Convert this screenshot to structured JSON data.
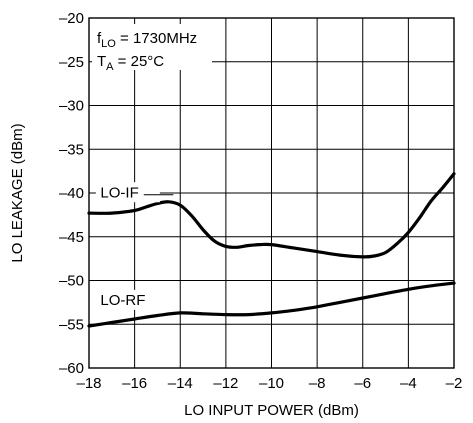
{
  "chart_data": {
    "type": "line",
    "xlabel": "LO INPUT POWER (dBm)",
    "ylabel": "LO LEAKAGE (dBm)",
    "xlim": [
      -18,
      -2
    ],
    "ylim": [
      -60,
      -20
    ],
    "xticks": [
      -18,
      -16,
      -14,
      -12,
      -10,
      -8,
      -6,
      -4,
      -2
    ],
    "yticks": [
      -20,
      -25,
      -30,
      -35,
      -40,
      -45,
      -50,
      -55,
      -60
    ],
    "x_tick_labels": [
      "–18",
      "–16",
      "–14",
      "–12",
      "–10",
      "–8",
      "–6",
      "–4",
      "–2"
    ],
    "y_tick_labels": [
      "–20",
      "–25",
      "–30",
      "–35",
      "–40",
      "–45",
      "–50",
      "–55",
      "–60"
    ],
    "grid": true,
    "conditions": {
      "flo_main": "f",
      "flo_sub": "LO",
      "flo_value": " = 1730MHz",
      "ta_main": "T",
      "ta_sub": "A",
      "ta_value": " = 25°C"
    },
    "series": [
      {
        "name": "LO-IF",
        "x": [
          -18,
          -17,
          -16,
          -15.5,
          -15,
          -14.5,
          -14,
          -13.5,
          -13,
          -12.5,
          -12,
          -11.5,
          -11,
          -10.5,
          -10,
          -9,
          -8,
          -7,
          -6,
          -5.5,
          -5,
          -4.5,
          -4,
          -3.5,
          -3,
          -2.5,
          -2
        ],
        "y": [
          -42.3,
          -42.3,
          -42.0,
          -41.6,
          -41.2,
          -41.0,
          -41.4,
          -42.6,
          -44.2,
          -45.5,
          -46.1,
          -46.2,
          -46.0,
          -45.9,
          -45.9,
          -46.3,
          -46.7,
          -47.1,
          -47.3,
          -47.2,
          -46.8,
          -45.8,
          -44.5,
          -42.8,
          -40.9,
          -39.4,
          -37.8
        ]
      },
      {
        "name": "LO-RF",
        "x": [
          -18,
          -17,
          -16,
          -15,
          -14,
          -13,
          -12,
          -11,
          -10,
          -9,
          -8,
          -7,
          -6,
          -5,
          -4,
          -3,
          -2
        ],
        "y": [
          -55.2,
          -54.8,
          -54.4,
          -54.0,
          -53.7,
          -53.8,
          -53.9,
          -53.9,
          -53.7,
          -53.4,
          -53.0,
          -52.5,
          -52.0,
          -51.5,
          -51.0,
          -50.6,
          -50.3
        ]
      }
    ]
  }
}
